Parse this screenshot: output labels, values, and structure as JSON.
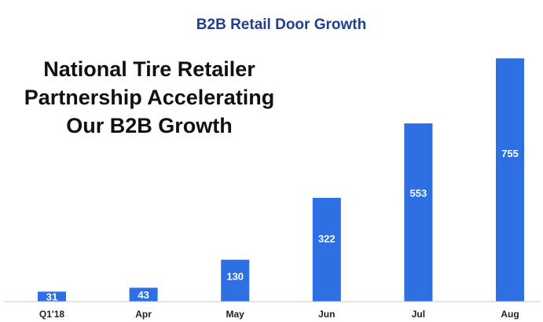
{
  "chart_data": {
    "type": "bar",
    "title": "B2B Retail Door Growth",
    "callout": [
      "National Tire Retailer",
      "Partnership Accelerating",
      "Our B2B Growth"
    ],
    "categories": [
      "Q1'18",
      "Apr",
      "May",
      "Jun",
      "Jul",
      "Aug"
    ],
    "values": [
      31,
      43,
      130,
      322,
      553,
      755
    ],
    "data_labels": [
      "31",
      "43",
      "130",
      "322",
      "553",
      "755"
    ],
    "xlabel": "",
    "ylabel": "",
    "ylim": [
      0,
      780
    ],
    "grid": false,
    "legend": "none",
    "colors": {
      "bar": "#2f6fe4",
      "title": "#1f3f8f",
      "axis": "#c9c9c9"
    }
  }
}
